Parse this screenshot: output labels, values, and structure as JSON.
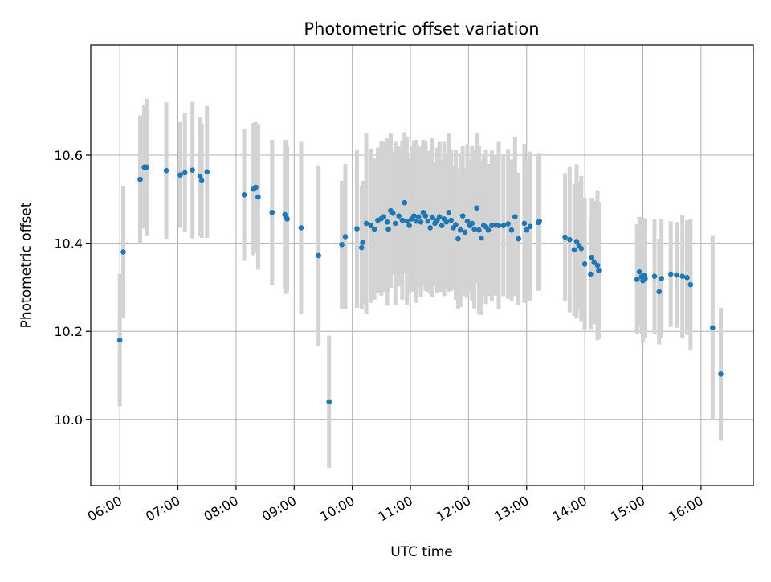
{
  "chart_data": {
    "type": "scatter",
    "title": "Photometric offset variation",
    "xlabel": "UTC time",
    "ylabel": "Photometric offset",
    "x_unit": "hours UTC",
    "xlim": [
      5.5,
      16.9
    ],
    "ylim": [
      9.85,
      10.85
    ],
    "x_ticks": [
      6,
      7,
      8,
      9,
      10,
      11,
      12,
      13,
      14,
      15,
      16
    ],
    "x_tick_labels": [
      "06:00",
      "07:00",
      "08:00",
      "09:00",
      "10:00",
      "11:00",
      "12:00",
      "13:00",
      "14:00",
      "15:00",
      "16:00"
    ],
    "y_ticks": [
      10.0,
      10.2,
      10.4,
      10.6
    ],
    "y_tick_labels": [
      "10.0",
      "10.2",
      "10.4",
      "10.6"
    ],
    "grid": true,
    "legend": "none",
    "colors": {
      "points": "#1f77b4",
      "errorbars": "#d3d3d3",
      "grid": "#b0b0b0"
    },
    "series": [
      {
        "x": [
          6.0,
          6.06,
          6.35,
          6.42,
          6.46,
          6.8,
          7.04,
          7.12,
          7.25,
          7.38,
          7.41,
          7.5,
          8.14,
          8.3,
          8.34,
          8.38,
          8.62,
          8.84,
          8.86,
          8.88,
          9.12,
          9.42,
          9.6,
          9.82,
          9.88,
          10.08,
          10.16,
          10.18,
          10.24,
          10.32,
          10.38,
          10.44,
          10.5,
          10.54,
          10.6,
          10.62,
          10.66,
          10.7,
          10.74,
          10.8,
          10.86,
          10.9,
          10.94,
          10.98,
          11.02,
          11.06,
          11.1,
          11.14,
          11.18,
          11.22,
          11.26,
          11.3,
          11.34,
          11.38,
          11.42,
          11.46,
          11.5,
          11.54,
          11.58,
          11.62,
          11.66,
          11.7,
          11.74,
          11.78,
          11.82,
          11.86,
          11.9,
          11.94,
          11.98,
          12.02,
          12.06,
          12.1,
          12.14,
          12.18,
          12.22,
          12.26,
          12.3,
          12.34,
          12.4,
          12.46,
          12.52,
          12.6,
          12.68,
          12.74,
          12.8,
          12.86,
          12.96,
          13.0,
          13.06,
          13.2,
          13.22,
          13.66,
          13.74,
          13.82,
          13.86,
          13.9,
          13.94,
          14.0,
          14.1,
          14.12,
          14.16,
          14.22,
          14.24,
          14.9,
          14.94,
          14.98,
          15.0,
          15.02,
          15.04,
          15.2,
          15.28,
          15.32,
          15.48,
          15.58,
          15.68,
          15.76,
          15.82,
          16.2,
          16.34
        ],
        "y": [
          10.18,
          10.38,
          10.545,
          10.573,
          10.573,
          10.565,
          10.555,
          10.56,
          10.566,
          10.552,
          10.542,
          10.562,
          10.51,
          10.523,
          10.527,
          10.505,
          10.47,
          10.465,
          10.46,
          10.455,
          10.435,
          10.372,
          10.04,
          10.397,
          10.415,
          10.433,
          10.39,
          10.402,
          10.445,
          10.44,
          10.432,
          10.452,
          10.456,
          10.46,
          10.448,
          10.432,
          10.474,
          10.468,
          10.445,
          10.462,
          10.452,
          10.492,
          10.45,
          10.44,
          10.455,
          10.462,
          10.45,
          10.46,
          10.448,
          10.47,
          10.462,
          10.45,
          10.435,
          10.458,
          10.445,
          10.452,
          10.46,
          10.44,
          10.455,
          10.448,
          10.47,
          10.452,
          10.435,
          10.442,
          10.41,
          10.43,
          10.462,
          10.425,
          10.45,
          10.44,
          10.445,
          10.432,
          10.48,
          10.43,
          10.412,
          10.44,
          10.437,
          10.43,
          10.44,
          10.441,
          10.44,
          10.44,
          10.444,
          10.43,
          10.46,
          10.41,
          10.445,
          10.43,
          10.438,
          10.447,
          10.45,
          10.414,
          10.408,
          10.385,
          10.404,
          10.395,
          10.388,
          10.353,
          10.33,
          10.368,
          10.356,
          10.35,
          10.338,
          10.318,
          10.335,
          10.324,
          10.315,
          10.327,
          10.32,
          10.325,
          10.29,
          10.32,
          10.33,
          10.328,
          10.325,
          10.322,
          10.306,
          10.208,
          10.103
        ],
        "err": [
          0.15,
          0.15,
          0.145,
          0.14,
          0.155,
          0.155,
          0.12,
          0.135,
          0.155,
          0.135,
          0.13,
          0.15,
          0.15,
          0.15,
          0.148,
          0.165,
          0.165,
          0.17,
          0.175,
          0.165,
          0.195,
          0.205,
          0.15,
          0.145,
          0.165,
          0.18,
          0.14,
          0.14,
          0.205,
          0.175,
          0.16,
          0.165,
          0.175,
          0.17,
          0.19,
          0.145,
          0.175,
          0.14,
          0.185,
          0.16,
          0.18,
          0.16,
          0.19,
          0.155,
          0.165,
          0.17,
          0.185,
          0.16,
          0.17,
          0.165,
          0.17,
          0.16,
          0.15,
          0.18,
          0.14,
          0.165,
          0.17,
          0.15,
          0.175,
          0.15,
          0.18,
          0.16,
          0.14,
          0.17,
          0.16,
          0.175,
          0.16,
          0.145,
          0.175,
          0.15,
          0.175,
          0.18,
          0.17,
          0.19,
          0.175,
          0.16,
          0.175,
          0.15,
          0.17,
          0.16,
          0.19,
          0.16,
          0.17,
          0.16,
          0.18,
          0.15,
          0.18,
          0.16,
          0.17,
          0.155,
          0.155,
          0.145,
          0.165,
          0.15,
          0.175,
          0.145,
          0.165,
          0.15,
          0.125,
          0.135,
          0.14,
          0.17,
          0.155,
          0.125,
          0.125,
          0.13,
          0.14,
          0.13,
          0.135,
          0.13,
          0.12,
          0.135,
          0.12,
          0.12,
          0.14,
          0.13,
          0.15,
          0.21,
          0.15
        ]
      }
    ]
  }
}
